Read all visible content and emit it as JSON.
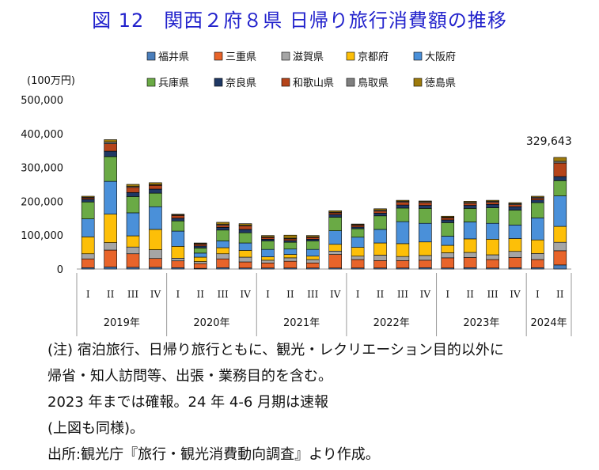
{
  "title": "図 12　関西２府８県 日帰り旅行消費額の推移",
  "chart_data": {
    "type": "bar",
    "stacked": true,
    "unit_label": "(100万円)",
    "ylim": [
      0,
      500000
    ],
    "yticks": [
      "0",
      "100,000",
      "200,000",
      "300,000",
      "400,000",
      "500,000"
    ],
    "categories": [
      "I",
      "II",
      "III",
      "IV",
      "I",
      "II",
      "III",
      "IV",
      "I",
      "II",
      "III",
      "IV",
      "I",
      "II",
      "III",
      "IV",
      "I",
      "II",
      "III",
      "IV",
      "I",
      "II"
    ],
    "years": [
      {
        "label": "2019年",
        "count": 4
      },
      {
        "label": "2020年",
        "count": 4
      },
      {
        "label": "2021年",
        "count": 4
      },
      {
        "label": "2022年",
        "count": 4
      },
      {
        "label": "2023年",
        "count": 4
      },
      {
        "label": "2024年",
        "count": 2
      }
    ],
    "annotation": {
      "text": "329,643",
      "index": 21
    },
    "series": [
      {
        "name": "福井県",
        "color": "#4a7ebb",
        "values": [
          4000,
          6000,
          5000,
          5000,
          4000,
          2000,
          4000,
          3000,
          3000,
          3000,
          3000,
          3000,
          3000,
          3000,
          3000,
          4000,
          3000,
          4000,
          3000,
          4000,
          4000,
          12000
        ]
      },
      {
        "name": "三重県",
        "color": "#e8642a",
        "values": [
          26000,
          50000,
          40000,
          26000,
          20000,
          14000,
          26000,
          18000,
          15000,
          20000,
          15000,
          40000,
          25000,
          22000,
          22000,
          22000,
          30000,
          30000,
          25000,
          30000,
          24000,
          42000
        ]
      },
      {
        "name": "滋賀県",
        "color": "#a5a5a5",
        "values": [
          15000,
          22000,
          20000,
          26000,
          8000,
          6000,
          15000,
          14000,
          8000,
          10000,
          10000,
          10000,
          10000,
          16000,
          12000,
          14000,
          15000,
          15000,
          14000,
          18000,
          18000,
          25000
        ]
      },
      {
        "name": "京都府",
        "color": "#fdbf08",
        "values": [
          50000,
          84000,
          33000,
          60000,
          35000,
          13000,
          18000,
          20000,
          10000,
          10000,
          10000,
          20000,
          26000,
          36000,
          38000,
          40000,
          22000,
          40000,
          46000,
          38000,
          40000,
          47000
        ]
      },
      {
        "name": "大阪府",
        "color": "#4a90d9",
        "values": [
          53000,
          97000,
          68000,
          67000,
          45000,
          12000,
          20000,
          22000,
          22000,
          16000,
          20000,
          40000,
          30000,
          40000,
          65000,
          55000,
          27000,
          50000,
          47000,
          40000,
          65000,
          90000
        ]
      },
      {
        "name": "兵庫県",
        "color": "#6aaa45",
        "values": [
          50000,
          73000,
          48000,
          40000,
          30000,
          15000,
          32000,
          30000,
          25000,
          20000,
          25000,
          40000,
          25000,
          40000,
          40000,
          44000,
          40000,
          40000,
          46000,
          44000,
          45000,
          45000
        ]
      },
      {
        "name": "奈良県",
        "color": "#1f3864",
        "values": [
          8000,
          16000,
          12000,
          12000,
          8000,
          6000,
          8000,
          10000,
          5000,
          5000,
          5000,
          8000,
          5000,
          8000,
          9000,
          9000,
          8000,
          9000,
          10000,
          10000,
          8000,
          12000
        ]
      },
      {
        "name": "和歌山県",
        "color": "#b5441a",
        "values": [
          4000,
          22000,
          15000,
          11000,
          8000,
          5000,
          6000,
          10000,
          5000,
          5000,
          5000,
          5000,
          5000,
          6000,
          8000,
          8000,
          6000,
          6000,
          6000,
          6000,
          5000,
          40000
        ]
      },
      {
        "name": "鳥取県",
        "color": "#7f7f7f",
        "values": [
          2000,
          5000,
          3000,
          2000,
          2000,
          2000,
          3000,
          2000,
          2000,
          2000,
          2000,
          2000,
          2000,
          3000,
          3000,
          3000,
          2000,
          3000,
          3000,
          3000,
          3000,
          5000
        ]
      },
      {
        "name": "徳島県",
        "color": "#9d7a0c",
        "values": [
          3000,
          7000,
          6000,
          6000,
          2000,
          2000,
          6000,
          5000,
          4000,
          9000,
          4000,
          4000,
          2000,
          4000,
          3000,
          2000,
          3000,
          3000,
          3000,
          3000,
          3000,
          11643
        ]
      }
    ]
  },
  "notes": [
    "(注) 宿泊旅行、日帰り旅行ともに、観光・レクリエーション目的以外に",
    "帰省・知人訪問等、出張・業務目的を含む。",
    "2023 年までは確報。24 年 4-6 月期は速報",
    "(上図も同様)。",
    "出所:観光庁『旅行・観光消費動向調査』より作成。"
  ]
}
